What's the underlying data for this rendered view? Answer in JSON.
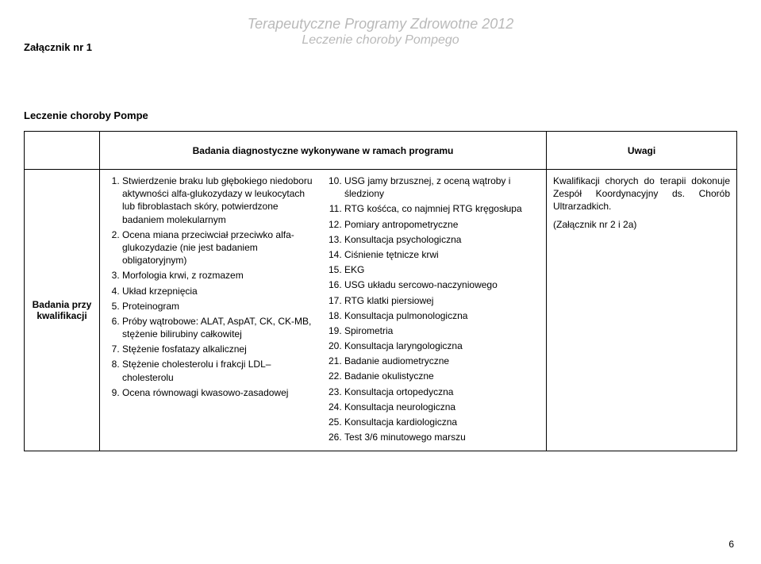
{
  "header": {
    "line1": "Terapeutyczne Programy Zdrowotne 2012",
    "line2": "Leczenie choroby Pompego"
  },
  "attachment_label": "Załącznik nr 1",
  "section_title": "Leczenie choroby Pompe",
  "table": {
    "head_left": "",
    "head_mid": "Badania diagnostyczne wykonywane w ramach programu",
    "head_right": "Uwagi",
    "row_label": "Badania przy kwalifikacji",
    "listA": [
      "Stwierdzenie braku lub głębokiego niedoboru aktywności alfa-glukozydazy w leukocytach lub fibroblastach skóry, potwierdzone badaniem molekularnym",
      "Ocena miana przeciwciał przeciwko alfa-glukozydazie (nie jest badaniem obligatoryjnym)",
      "Morfologia krwi, z rozmazem",
      "Układ krzepnięcia",
      "Proteinogram",
      "Próby wątrobowe: ALAT, AspAT, CK, CK-MB, stężenie bilirubiny całkowitej",
      "Stężenie fosfatazy alkalicznej",
      "Stężenie cholesterolu i frakcji LDL–cholesterolu",
      "Ocena równowagi kwasowo-zasadowej"
    ],
    "listB": [
      "USG jamy brzusznej, z oceną wątroby i śledziony",
      "RTG kośćca, co najmniej RTG kręgosłupa",
      "Pomiary antropometryczne",
      "Konsultacja psychologiczna",
      "Ciśnienie tętnicze krwi",
      "EKG",
      "USG układu sercowo-naczyniowego",
      "RTG klatki piersiowej",
      "Konsultacja pulmonologiczna",
      "Spirometria",
      "Konsultacja laryngologiczna",
      "Badanie audiometryczne",
      "Badanie okulistyczne",
      "Konsultacja ortopedyczna",
      "Konsultacja neurologiczna",
      "Konsultacja kardiologiczna",
      "Test 3/6 minutowego marszu"
    ],
    "uwagi": {
      "p1": "Kwalifikacji chorych do terapii dokonuje Zespół Koordynacyjny ds. Chorób Ultrarzadkich.",
      "p2": "(Załącznik nr 2 i 2a)"
    }
  },
  "page_number": "6"
}
